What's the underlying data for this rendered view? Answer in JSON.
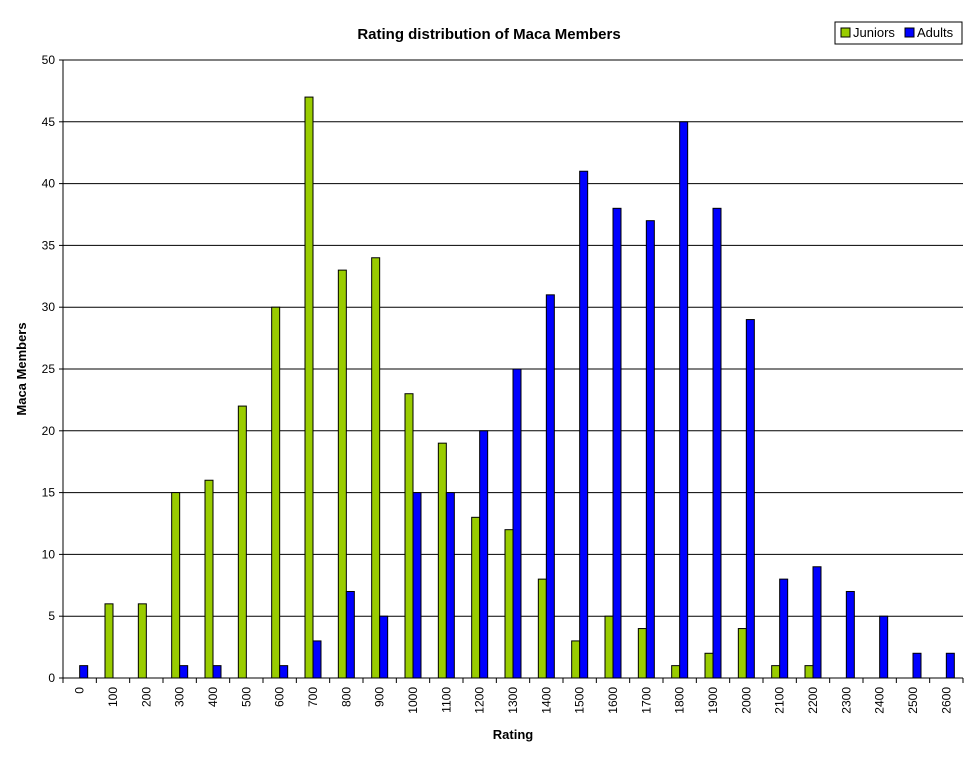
{
  "chart_data": {
    "type": "bar",
    "title": "Rating distribution of Maca Members",
    "xlabel": "Rating",
    "ylabel": "Maca Members",
    "ylim": [
      0,
      50
    ],
    "yticks": [
      0,
      5,
      10,
      15,
      20,
      25,
      30,
      35,
      40,
      45,
      50
    ],
    "grid": true,
    "legend_position": "top-right",
    "categories": [
      "0",
      "100",
      "200",
      "300",
      "400",
      "500",
      "600",
      "700",
      "800",
      "900",
      "1000",
      "1100",
      "1200",
      "1300",
      "1400",
      "1500",
      "1600",
      "1700",
      "1800",
      "1900",
      "2000",
      "2100",
      "2200",
      "2300",
      "2400",
      "2500",
      "2600"
    ],
    "series": [
      {
        "name": "Juniors",
        "color": "#99cc00",
        "values": [
          0,
          6,
          6,
          15,
          16,
          22,
          30,
          47,
          33,
          34,
          23,
          19,
          13,
          12,
          8,
          3,
          5,
          4,
          1,
          2,
          4,
          1,
          1,
          0,
          0,
          0,
          0
        ]
      },
      {
        "name": "Adults",
        "color": "#0000ff",
        "values": [
          1,
          0,
          0,
          1,
          1,
          0,
          1,
          3,
          7,
          5,
          15,
          15,
          20,
          25,
          31,
          41,
          38,
          37,
          45,
          38,
          29,
          8,
          9,
          7,
          5,
          2,
          2
        ]
      }
    ]
  }
}
